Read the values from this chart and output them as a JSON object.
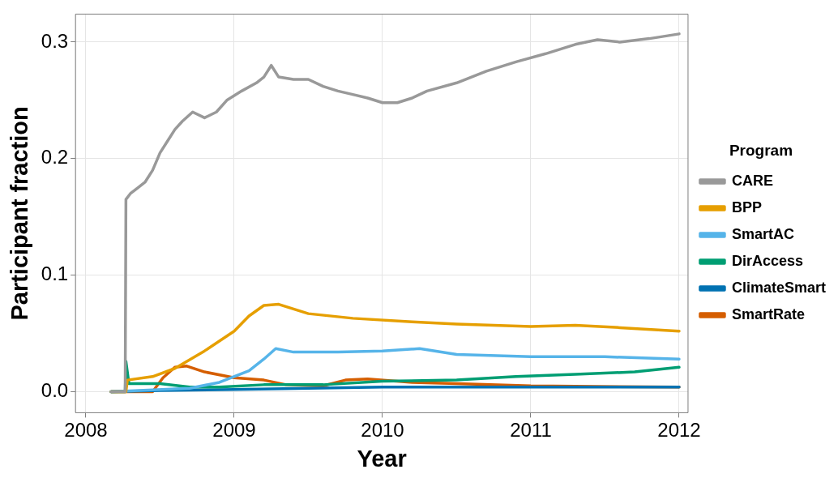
{
  "chart_data": {
    "type": "line",
    "xlabel": "Year",
    "ylabel": "Participant fraction",
    "legend_title": "Program",
    "legend": "right",
    "grid": true,
    "marker": "none",
    "line_style": "solid",
    "xlim": [
      2007.93,
      2012.06
    ],
    "xticks": [
      2008,
      2009,
      2010,
      2011,
      2012
    ],
    "ylim": [
      -0.018,
      0.324
    ],
    "yticks": [
      {
        "value": 0,
        "label": "0.0"
      },
      {
        "value": 0.1,
        "label": "0.1"
      },
      {
        "value": 0.2,
        "label": "0.2"
      },
      {
        "value": 0.3,
        "label": "0.3"
      }
    ],
    "series": [
      {
        "name": "CARE",
        "color": "#999999",
        "x": [
          2008.17,
          2008.265,
          2008.27,
          2008.3,
          2008.35,
          2008.4,
          2008.45,
          2008.5,
          2008.55,
          2008.6,
          2008.65,
          2008.72,
          2008.8,
          2008.88,
          2008.95,
          2009.05,
          2009.15,
          2009.2,
          2009.25,
          2009.3,
          2009.4,
          2009.5,
          2009.6,
          2009.7,
          2009.8,
          2009.9,
          2010.0,
          2010.1,
          2010.2,
          2010.3,
          2010.5,
          2010.7,
          2010.9,
          2011.1,
          2011.3,
          2011.45,
          2011.6,
          2011.8,
          2012.0
        ],
        "values": [
          0,
          0,
          0.165,
          0.17,
          0.175,
          0.18,
          0.19,
          0.205,
          0.215,
          0.225,
          0.232,
          0.24,
          0.235,
          0.24,
          0.25,
          0.258,
          0.265,
          0.27,
          0.28,
          0.27,
          0.268,
          0.268,
          0.262,
          0.258,
          0.255,
          0.252,
          0.248,
          0.248,
          0.252,
          0.258,
          0.265,
          0.275,
          0.283,
          0.29,
          0.298,
          0.302,
          0.3,
          0.303,
          0.307
        ]
      },
      {
        "name": "BPP",
        "color": "#e69f00",
        "x": [
          2008.17,
          2008.27,
          2008.28,
          2008.45,
          2008.6,
          2008.8,
          2009.0,
          2009.1,
          2009.2,
          2009.3,
          2009.5,
          2009.8,
          2010.2,
          2010.5,
          2011.0,
          2011.3,
          2011.6,
          2012.0
        ],
        "values": [
          0,
          0,
          0.01,
          0.013,
          0.02,
          0.035,
          0.052,
          0.065,
          0.074,
          0.075,
          0.067,
          0.063,
          0.06,
          0.058,
          0.056,
          0.057,
          0.055,
          0.052
        ]
      },
      {
        "name": "SmartAC",
        "color": "#56b4e9",
        "x": [
          2008.17,
          2008.7,
          2008.9,
          2009.1,
          2009.2,
          2009.28,
          2009.4,
          2009.7,
          2010.0,
          2010.25,
          2010.5,
          2011.0,
          2011.5,
          2012.0
        ],
        "values": [
          0,
          0.003,
          0.008,
          0.018,
          0.028,
          0.037,
          0.034,
          0.034,
          0.035,
          0.037,
          0.032,
          0.03,
          0.03,
          0.028
        ]
      },
      {
        "name": "DirAccess",
        "color": "#009e73",
        "x": [
          2008.17,
          2008.265,
          2008.27,
          2008.29,
          2008.5,
          2008.7,
          2008.9,
          2009.2,
          2009.6,
          2010.0,
          2010.5,
          2010.9,
          2011.3,
          2011.7,
          2012.0
        ],
        "values": [
          0,
          0,
          0.026,
          0.007,
          0.007,
          0.004,
          0.004,
          0.006,
          0.006,
          0.009,
          0.01,
          0.013,
          0.015,
          0.017,
          0.021
        ]
      },
      {
        "name": "ClimateSmart",
        "color": "#0072b2",
        "x": [
          2008.17,
          2008.5,
          2009.0,
          2009.5,
          2010.0,
          2011.0,
          2012.0
        ],
        "values": [
          0,
          0.001,
          0.002,
          0.003,
          0.004,
          0.004,
          0.004
        ]
      },
      {
        "name": "SmartRate",
        "color": "#d55e00",
        "x": [
          2008.17,
          2008.45,
          2008.52,
          2008.6,
          2008.68,
          2008.8,
          2009.0,
          2009.2,
          2009.35,
          2009.6,
          2009.75,
          2009.9,
          2010.2,
          2010.5,
          2011.0,
          2012.0
        ],
        "values": [
          0,
          0,
          0.012,
          0.021,
          0.022,
          0.017,
          0.012,
          0.01,
          0.006,
          0.005,
          0.01,
          0.011,
          0.008,
          0.007,
          0.005,
          0.004
        ]
      }
    ]
  }
}
